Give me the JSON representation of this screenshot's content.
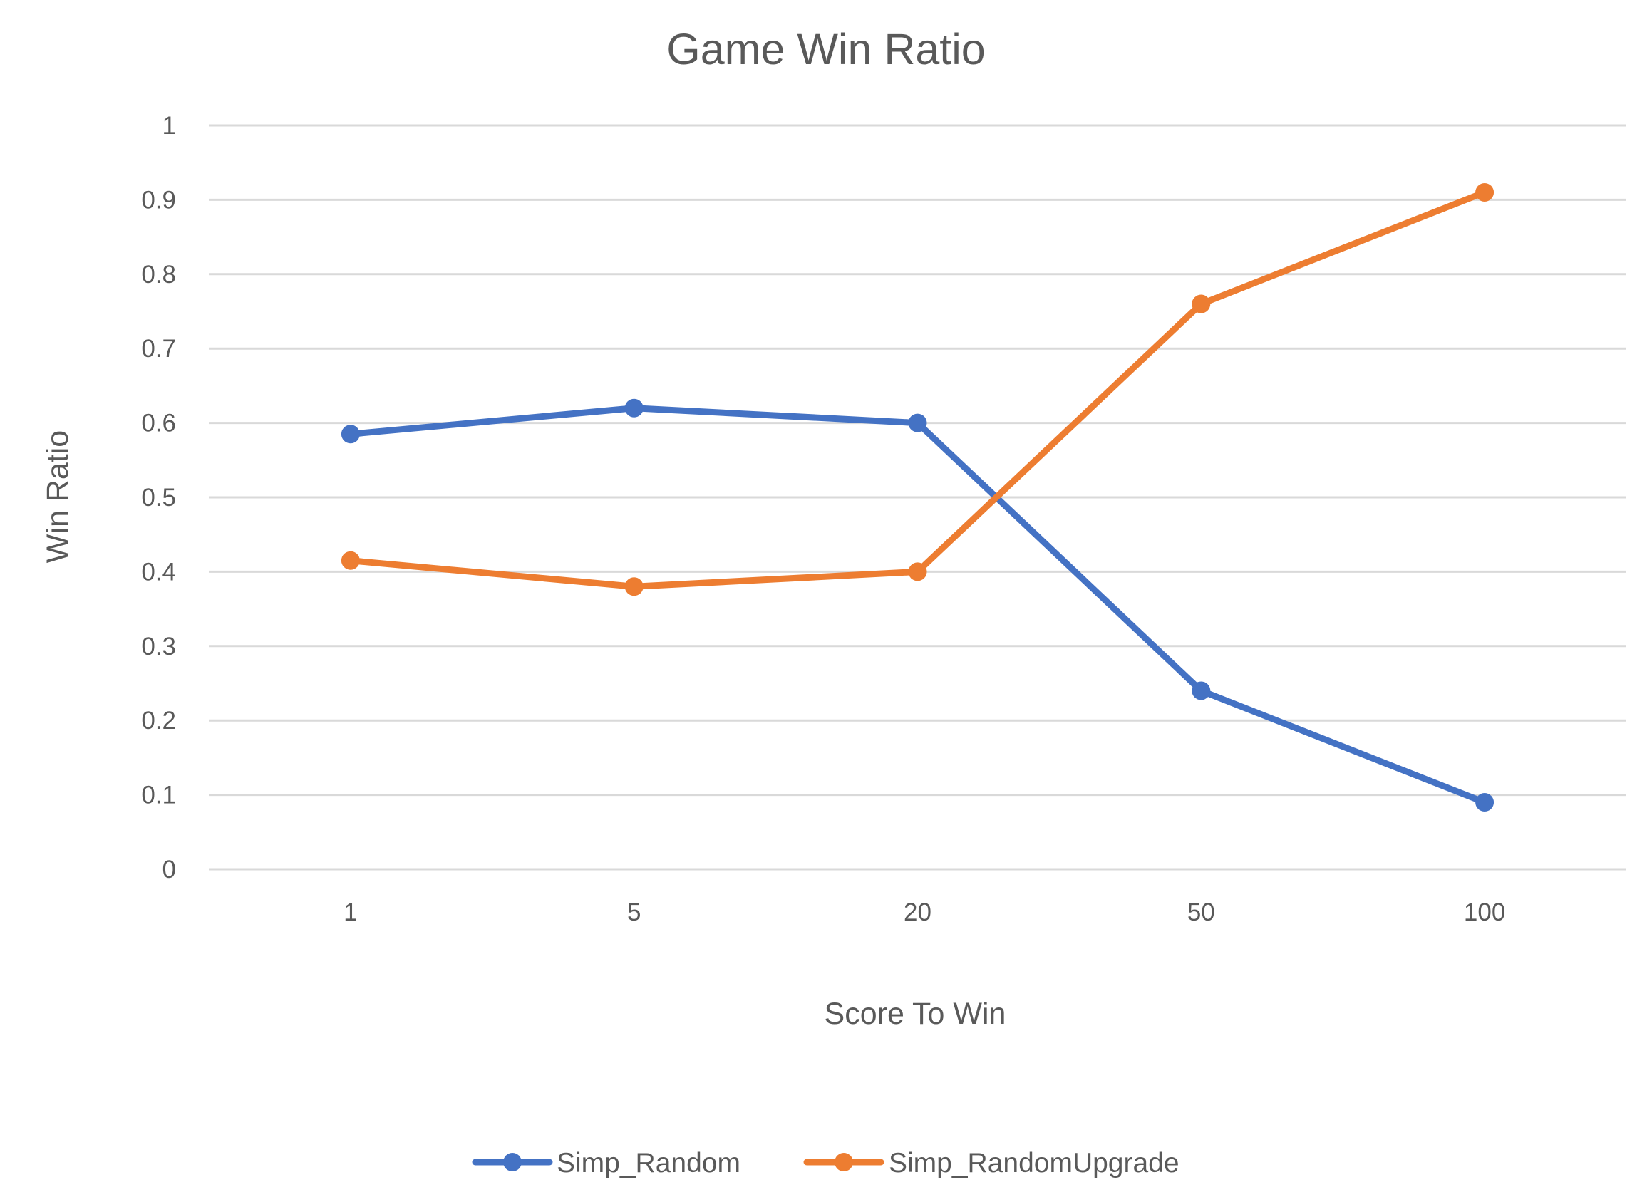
{
  "chart_data": {
    "type": "line",
    "title": "Game Win Ratio",
    "xlabel": "Score To Win",
    "ylabel": "Win Ratio",
    "categories": [
      "1",
      "5",
      "20",
      "50",
      "100"
    ],
    "ylim": [
      0,
      1
    ],
    "yticks": [
      "0",
      "0.1",
      "0.2",
      "0.3",
      "0.4",
      "0.5",
      "0.6",
      "0.7",
      "0.8",
      "0.9",
      "1"
    ],
    "grid": true,
    "legend_position": "bottom",
    "series": [
      {
        "name": "Simp_Random",
        "color": "#4472c4",
        "values": [
          0.585,
          0.62,
          0.6,
          0.24,
          0.09
        ]
      },
      {
        "name": "Simp_RandomUpgrade",
        "color": "#ed7d31",
        "values": [
          0.415,
          0.38,
          0.4,
          0.76,
          0.91
        ]
      }
    ]
  }
}
